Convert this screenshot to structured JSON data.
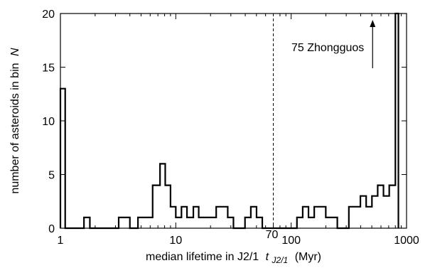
{
  "chart_data": {
    "type": "histogram-step",
    "xlabel": "median lifetime in J2/1",
    "xlabel_symbol": "t",
    "xlabel_subscript": "J2/1",
    "xlabel_unit": "(Myr)",
    "ylabel_prefix": "number of asteroids in bin",
    "ylabel_symbol": "N",
    "x_scale": "log",
    "xlim": [
      1,
      1000
    ],
    "ylim": [
      0,
      20
    ],
    "x_ticks": [
      1,
      10,
      100,
      1000
    ],
    "x_tick_labels": [
      "1",
      "10",
      "100",
      "1000"
    ],
    "y_ticks": [
      0,
      5,
      10,
      15,
      20
    ],
    "y_tick_labels": [
      "0",
      "5",
      "10",
      "15",
      "20"
    ],
    "vline": {
      "x": 70,
      "label": "70",
      "style": "dashed"
    },
    "annotation": {
      "text": "75 Zhongguos",
      "arrow": "up",
      "at_x": 800
    },
    "series": [
      {
        "bin_edges": [
          1.0,
          1.1,
          1.6,
          1.8,
          3.2,
          4.0,
          4.7,
          6.3,
          7.3,
          8.1,
          9.0,
          10.0,
          11.2,
          12.5,
          14.2,
          15.8,
          17.6,
          22.4,
          25.1,
          28.2,
          31.6,
          39.8,
          44.7,
          50.1,
          56.2,
          63.1,
          112.2,
          125.9,
          141.3,
          158.5,
          177.8,
          199.5,
          251.2,
          281.8,
          316.2,
          398.1,
          446.7,
          501.2,
          562.3,
          631.0,
          707.9,
          800.0,
          850.0
        ],
        "counts": [
          13,
          0,
          1,
          0,
          1,
          0,
          1,
          4,
          6,
          4,
          2,
          1,
          2,
          1,
          2,
          1,
          1,
          2,
          2,
          1,
          0,
          1,
          2,
          1,
          0,
          0,
          1,
          2,
          1,
          2,
          2,
          1,
          0,
          0,
          2,
          3,
          2,
          3,
          4,
          3,
          4,
          20
        ]
      }
    ]
  }
}
